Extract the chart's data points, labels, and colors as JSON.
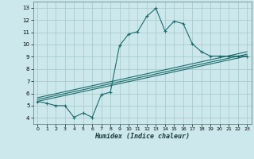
{
  "bg_color": "#cce8ec",
  "grid_color": "#aacccc",
  "line_color": "#1a6b6b",
  "xlabel": "Humidex (Indice chaleur)",
  "xlim": [
    -0.5,
    23.5
  ],
  "ylim": [
    3.5,
    13.5
  ],
  "yticks": [
    4,
    5,
    6,
    7,
    8,
    9,
    10,
    11,
    12,
    13
  ],
  "xticks": [
    0,
    1,
    2,
    3,
    4,
    5,
    6,
    7,
    8,
    9,
    10,
    11,
    12,
    13,
    14,
    15,
    16,
    17,
    18,
    19,
    20,
    21,
    22,
    23
  ],
  "line1_x": [
    0,
    1,
    2,
    3,
    4,
    5,
    6,
    7,
    8,
    9,
    10,
    11,
    12,
    13,
    14,
    15,
    16,
    17,
    18,
    19,
    20,
    21,
    22,
    23
  ],
  "line1_y": [
    5.35,
    5.2,
    5.0,
    5.0,
    4.05,
    4.4,
    4.05,
    5.9,
    6.1,
    9.9,
    10.85,
    11.05,
    12.3,
    12.95,
    11.1,
    11.9,
    11.7,
    10.05,
    9.4,
    9.05,
    9.05,
    9.05,
    9.05,
    9.05
  ],
  "line2_x": [
    0,
    23
  ],
  "line2_y": [
    5.35,
    9.05
  ],
  "line3_x": [
    0,
    23
  ],
  "line3_y": [
    5.5,
    9.2
  ],
  "line4_x": [
    0,
    23
  ],
  "line4_y": [
    5.65,
    9.4
  ]
}
